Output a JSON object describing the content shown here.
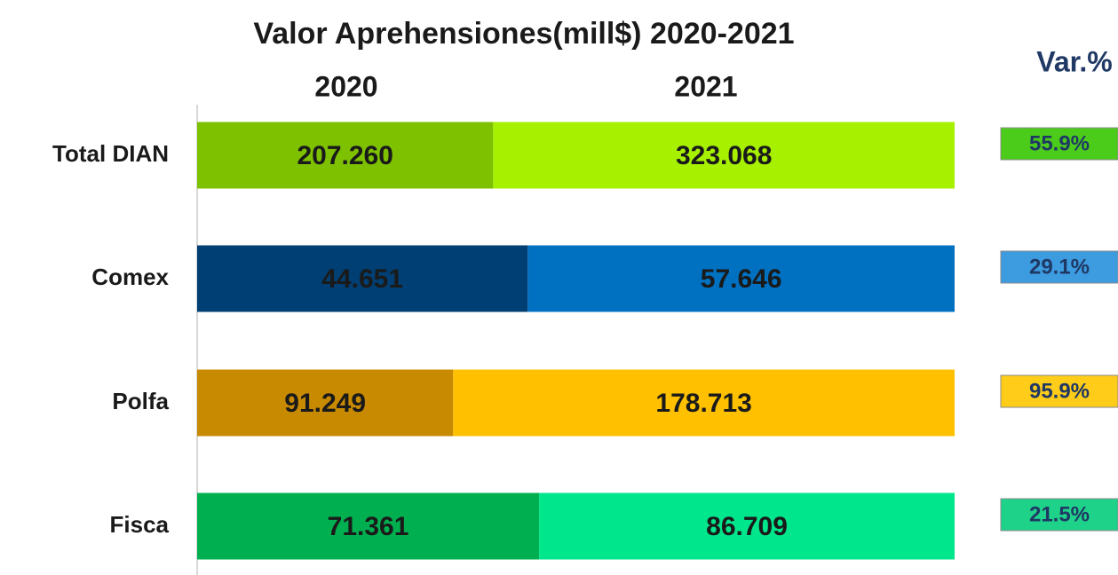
{
  "chart_data": {
    "type": "bar_stacked_100",
    "title": "Valor Aprehensiones(mill$) 2020-2021",
    "categories": [
      "Total DIAN",
      "Comex",
      "Polfa",
      "Fisca"
    ],
    "series": [
      {
        "name": "2020",
        "colors": [
          "#7dc100",
          "#003f73",
          "#c88a00",
          "#00b050"
        ],
        "values": [
          207260,
          44651,
          91249,
          71361
        ],
        "value_labels": [
          "207.260",
          "44.651",
          "91.249",
          "71.361"
        ]
      },
      {
        "name": "2021",
        "colors": [
          "#a6f000",
          "#0070c0",
          "#ffc000",
          "#00e68c"
        ],
        "values": [
          323068,
          57646,
          178713,
          86709
        ],
        "value_labels": [
          "323.068",
          "57.646",
          "178.713",
          "86.709"
        ]
      }
    ],
    "variation": {
      "title": "Var.%",
      "colors": [
        "#4ccc1a",
        "#3d9be0",
        "#ffcc1a",
        "#1fd28a"
      ],
      "values": [
        55.9,
        29.1,
        95.9,
        21.5
      ],
      "value_labels": [
        "55.9%",
        "29.1%",
        "95.9%",
        "21.5%"
      ]
    }
  }
}
